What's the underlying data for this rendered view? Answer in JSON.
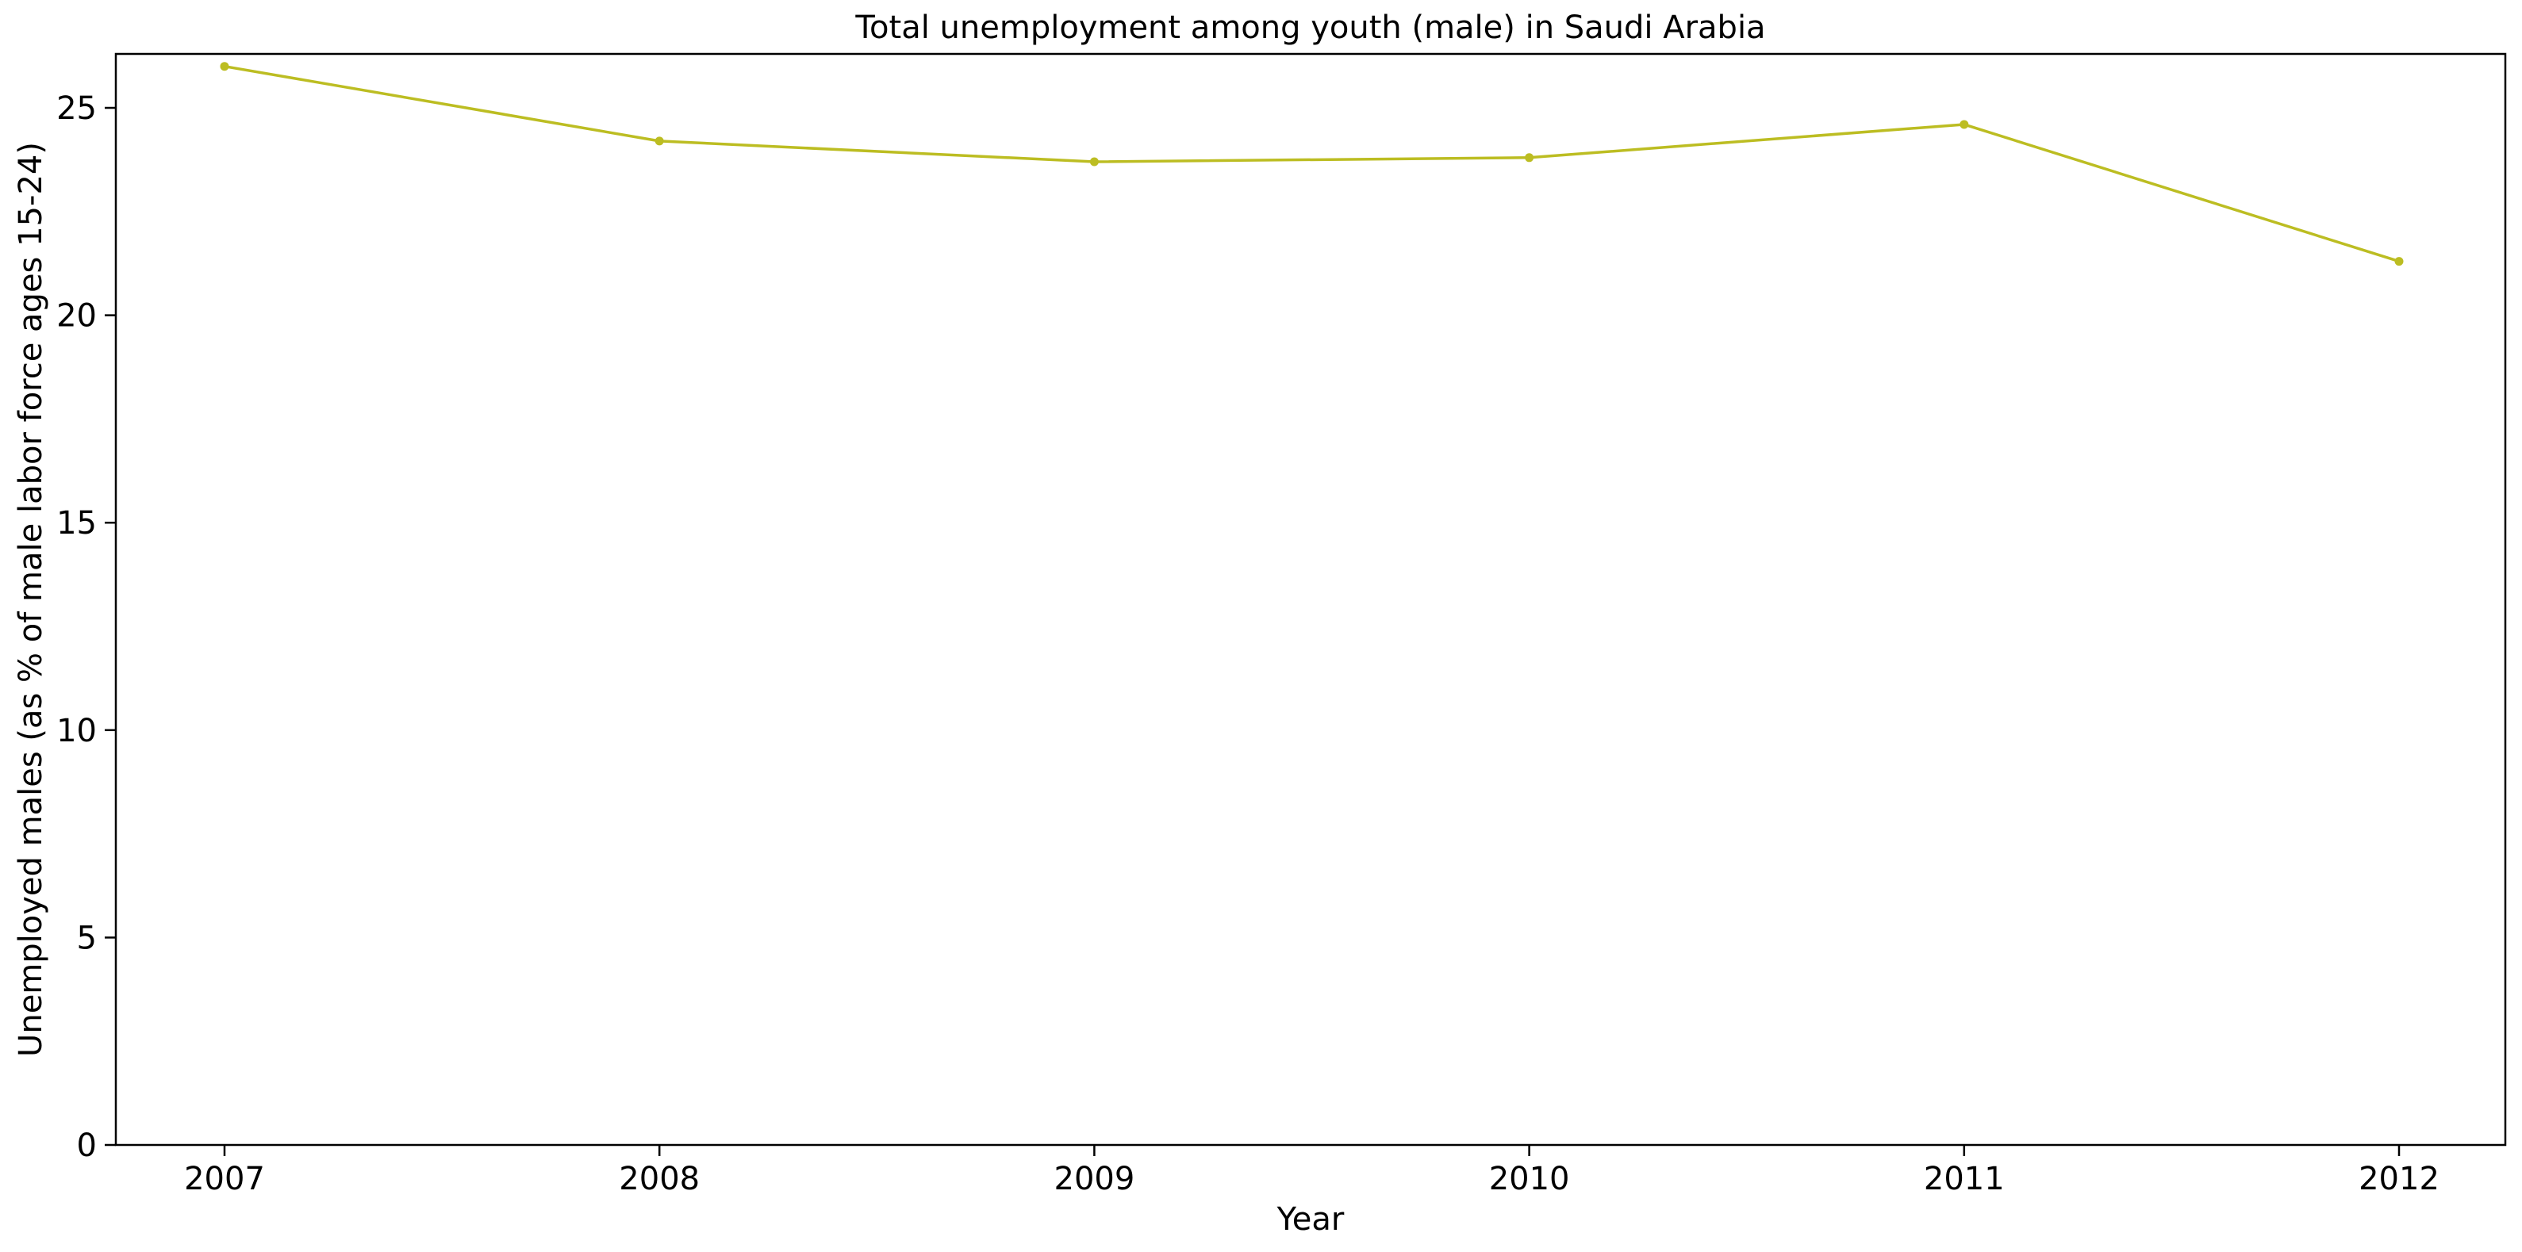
{
  "chart_data": {
    "type": "line",
    "title": "Total unemployment among youth (male) in Saudi Arabia",
    "xlabel": "Year",
    "ylabel": "Unemployed males (as % of male labor force ages 15-24)",
    "x": [
      "2007",
      "2008",
      "2009",
      "2010",
      "2011",
      "2012"
    ],
    "series": [
      {
        "values": [
          26.0,
          24.2,
          23.7,
          23.8,
          24.6,
          21.3
        ],
        "color": "#bcbd22",
        "marker": "circle"
      }
    ],
    "ylim": [
      0,
      26.3
    ],
    "yticks": [
      0,
      5,
      10,
      15,
      20,
      25
    ],
    "grid": false,
    "legend": "none"
  }
}
